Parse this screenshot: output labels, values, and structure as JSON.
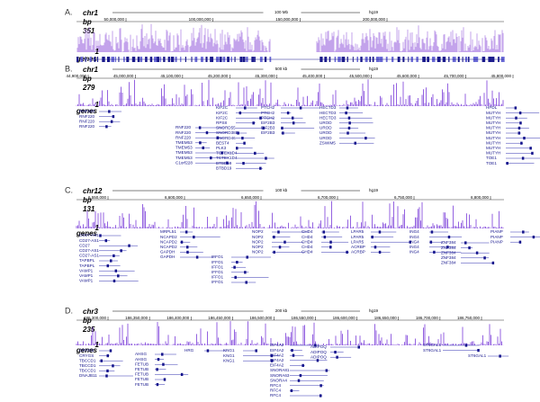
{
  "panels": [
    {
      "label": "A.",
      "chrom": "chr1",
      "bp_label": "bp",
      "bp_value": "351",
      "scale": "100 Mb",
      "assembly": "hg19",
      "track_one": "1",
      "track_genes": "genes",
      "ticks": [
        "50,000,000",
        "100,000,000",
        "150,000,000",
        "200,000,000"
      ],
      "gene_columns": []
    },
    {
      "label": "B.",
      "chrom": "chr1",
      "bp_label": "bp",
      "bp_value": "279",
      "scale": "500 kb",
      "assembly": "hg19",
      "track_one": "1",
      "track_genes": "genes",
      "ticks": [
        "44,900,000",
        "45,000,000",
        "45,100,000",
        "45,200,000",
        "45,300,000",
        "45,400,000",
        "45,500,000",
        "45,600,000",
        "45,700,000",
        "45,800,000"
      ],
      "gene_columns": [
        [
          "RNF220",
          "RNF220",
          "RNF220",
          "RNF220"
        ],
        [
          "RNF220",
          "RNF220",
          "RNF220",
          "TMEM53",
          "TMEM53",
          "TMEM53",
          "TMEM53",
          "C1orf228"
        ],
        [
          "KIF2C",
          "KIF2C",
          "KIF2C",
          "RPS8",
          "SNORD55",
          "SNORD38B",
          "SNORD46",
          "BEST4",
          "PLK3",
          "TCTEX1D4",
          "TCTEX1D4",
          "BTBD19",
          "BTBD19"
        ],
        [
          "PTCH2",
          "PTCH2",
          "PTCH2",
          "EIF2B3",
          "EIF2B3",
          "EIF2B3"
        ],
        [
          "HECTD3",
          "HECTD3",
          "HECTD3",
          "UROD",
          "UROD",
          "UROD",
          "UROD",
          "ZSWIM5"
        ],
        [
          "HPDL",
          "MUTYH",
          "MUTYH",
          "MUTYH",
          "MUTYH",
          "MUTYH",
          "MUTYH",
          "MUTYH",
          "MUTYH",
          "MUTYH",
          "TOE1",
          "TOE1"
        ]
      ]
    },
    {
      "label": "C.",
      "chrom": "chr12",
      "bp_label": "bp",
      "bp_value": "131",
      "scale": "100 kb",
      "assembly": "hg19",
      "track_one": "1",
      "track_genes": "genes",
      "ticks": [
        "6,550,000",
        "6,600,000",
        "6,650,000",
        "6,700,000",
        "6,750,000",
        "6,800,000"
      ],
      "gene_columns": [
        [
          "CD27-AS1",
          "CD27-AS1",
          "CD27",
          "CD27-AS1",
          "CD27-AS1",
          "TAPBPL",
          "TAPBPL",
          "VAMP1",
          "VAMP1",
          "VAMP1"
        ],
        [
          "MRPL51",
          "NCAPD2",
          "NCAPD2",
          "NCAPD2",
          "GAPDH",
          "GAPDH"
        ],
        [
          "IFFO1",
          "IFFO1",
          "IFFO1",
          "IFFO1",
          "IFFO1",
          "IFFO1"
        ],
        [
          "NOP2",
          "NOP2",
          "NOP2",
          "NOP2",
          "NOP2"
        ],
        [
          "CHD4",
          "CHD4",
          "CHD4",
          "CHD4",
          "CHD4"
        ],
        [
          "LPAR5",
          "LPAR5",
          "LPAR5",
          "ACRBP",
          "ACRBP"
        ],
        [
          "ING4",
          "ING4",
          "ING4",
          "ING4",
          "ING4"
        ],
        [
          "ZNF384",
          "ZNF384",
          "ZNF384",
          "ZNF384",
          "ZNF384"
        ],
        [
          "PIANP",
          "PIANP",
          "PIANP"
        ]
      ]
    },
    {
      "label": "D.",
      "chrom": "chr3",
      "bp_label": "bp",
      "bp_value": "235",
      "scale": "200 kb",
      "assembly": "hg19",
      "track_one": "1",
      "track_genes": "genes",
      "ticks": [
        "186,300,000",
        "186,350,000",
        "186,400,000",
        "186,450,000",
        "186,500,000",
        "186,550,000",
        "186,600,000",
        "186,650,000",
        "186,700,000",
        "186,750,000"
      ],
      "gene_columns": [
        [
          "CRYGS",
          "CRYGS",
          "TBCCD1",
          "TBCCD1",
          "TBCCD1",
          "DNAJB11"
        ],
        [
          "AHSG",
          "AHSG",
          "FETUB",
          "FETUB",
          "FETUB",
          "FETUB",
          "FETUB"
        ],
        [
          "HRG"
        ],
        [
          "KNG1",
          "KNG1",
          "KNG1"
        ],
        [
          "EIF4A2",
          "EIF4A2",
          "EIF4A2",
          "EIF4A2",
          "EIF4A2",
          "SNORA81",
          "SNORA63",
          "SNORA4",
          "RFC4",
          "RFC4",
          "RFC4"
        ],
        [
          "ADIPOQ",
          "ADIPOQ",
          "ADIPOQ"
        ],
        [
          "ST6GAL1",
          "ST6GAL1"
        ],
        [
          "ST6GAL1"
        ]
      ]
    }
  ]
}
